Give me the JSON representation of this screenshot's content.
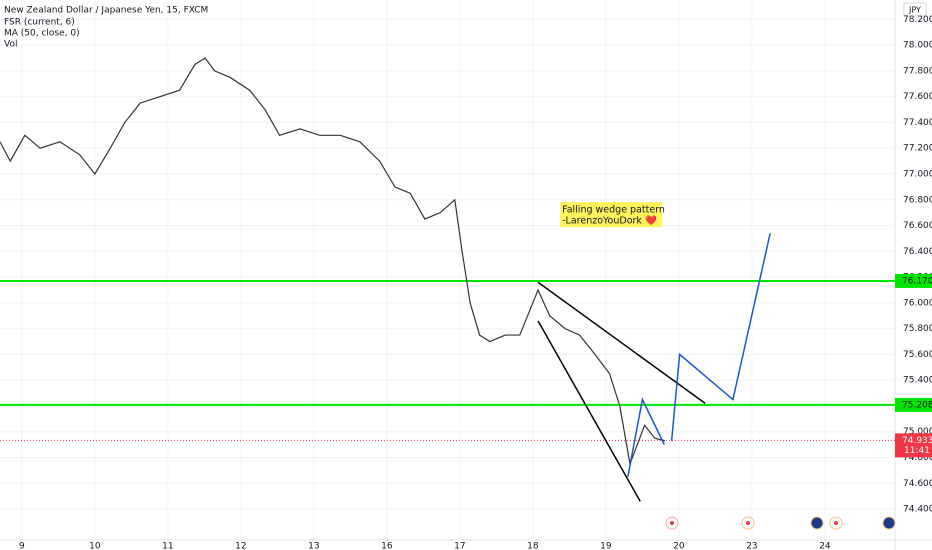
{
  "chart_data": {
    "type": "line",
    "title": "New Zealand Dollar / Japanese Yen, 15, FXCM",
    "indicators": [
      "FSR (current, 6)",
      "MA (50, close, 0)",
      "Vol"
    ],
    "currency": "JPY",
    "xlim": [
      -0.3,
      11.96
    ],
    "ylim": [
      74.16,
      78.35
    ],
    "xticks": [
      {
        "value": 0,
        "label": "9"
      },
      {
        "value": 1,
        "label": "10"
      },
      {
        "value": 2,
        "label": "11"
      },
      {
        "value": 3,
        "label": "12"
      },
      {
        "value": 4,
        "label": "13"
      },
      {
        "value": 5,
        "label": "16"
      },
      {
        "value": 6,
        "label": "17"
      },
      {
        "value": 7,
        "label": "18"
      },
      {
        "value": 8,
        "label": "19"
      },
      {
        "value": 9,
        "label": "20"
      },
      {
        "value": 10,
        "label": "23"
      },
      {
        "value": 11,
        "label": "24"
      }
    ],
    "yticks": [
      {
        "value": 74.4,
        "label": "74.400"
      },
      {
        "value": 74.6,
        "label": "74.600"
      },
      {
        "value": 74.8,
        "label": "74.800"
      },
      {
        "value": 75,
        "label": "75.000"
      },
      {
        "value": 75.2,
        "label": "75.200"
      },
      {
        "value": 75.4,
        "label": "75.400"
      },
      {
        "value": 75.6,
        "label": "75.600"
      },
      {
        "value": 75.8,
        "label": "75.800"
      },
      {
        "value": 76,
        "label": "76.000"
      },
      {
        "value": 76.2,
        "label": "76.200"
      },
      {
        "value": 76.4,
        "label": "76.400"
      },
      {
        "value": 76.6,
        "label": "76.600"
      },
      {
        "value": 76.8,
        "label": "76.800"
      },
      {
        "value": 77,
        "label": "77.000"
      },
      {
        "value": 77.2,
        "label": "77.200"
      },
      {
        "value": 77.4,
        "label": "77.400"
      },
      {
        "value": 77.6,
        "label": "77.600"
      },
      {
        "value": 77.8,
        "label": "77.800"
      },
      {
        "value": 78,
        "label": "78.000"
      },
      {
        "value": 78.2,
        "label": "78.200"
      }
    ],
    "series": [
      {
        "color": "#333333",
        "width": 1.2,
        "x": [
          -0.3,
          -0.16,
          0.04,
          0.25,
          0.52,
          0.79,
          1.0,
          1.21,
          1.41,
          1.62,
          1.89,
          2.16,
          2.37,
          2.51,
          2.64,
          2.85,
          3.12,
          3.33,
          3.53,
          3.81,
          4.08,
          4.36,
          4.63,
          4.9,
          5.11,
          5.32,
          5.52,
          5.73,
          5.93,
          6.03,
          6.14,
          6.27,
          6.41,
          6.62,
          6.82,
          7.07,
          7.23,
          7.44,
          7.64,
          7.85,
          8.05,
          8.19,
          8.33,
          8.53,
          8.67,
          8.81
        ],
        "values": [
          77.25,
          77.1,
          77.3,
          77.2,
          77.25,
          77.15,
          77.0,
          77.2,
          77.4,
          77.55,
          77.6,
          77.65,
          77.85,
          77.9,
          77.8,
          77.75,
          77.65,
          77.5,
          77.3,
          77.35,
          77.3,
          77.3,
          77.25,
          77.1,
          76.9,
          76.85,
          76.65,
          76.7,
          76.8,
          76.4,
          76.0,
          75.75,
          75.7,
          75.75,
          75.75,
          76.1,
          75.9,
          75.8,
          75.75,
          75.6,
          75.45,
          75.2,
          74.75,
          75.05,
          74.95,
          74.93
        ]
      },
      {
        "color": "#000000",
        "width": 1.5,
        "x": [
          7.07,
          9.36
        ],
        "values": [
          76.16,
          75.22
        ]
      },
      {
        "color": "#000000",
        "width": 1.5,
        "x": [
          7.07,
          8.47
        ],
        "values": [
          75.86,
          74.46
        ]
      },
      {
        "color": "#1a56d6",
        "width": 1.5,
        "x": [
          8.9,
          9.01,
          9.74,
          10.25
        ],
        "values": [
          74.93,
          75.6,
          75.25,
          76.54
        ]
      },
      {
        "color": "#1a56d6",
        "width": 1.5,
        "x": [
          8.3,
          8.5,
          8.8
        ],
        "values": [
          74.65,
          75.25,
          74.9
        ]
      }
    ],
    "levels": [
      {
        "value": 76.17,
        "label": "76.170",
        "color": "#00e600"
      },
      {
        "value": 75.208,
        "label": "75.208",
        "color": "#00e600"
      }
    ],
    "current_price": {
      "value": 74.933,
      "label": "74.933",
      "time": "11:41",
      "color": "#f23645"
    },
    "annotation": {
      "lines": [
        "Falling wedge pattern",
        "-LarenzoYouDork ❤️"
      ],
      "x": 7.4,
      "y": 76.72
    }
  }
}
